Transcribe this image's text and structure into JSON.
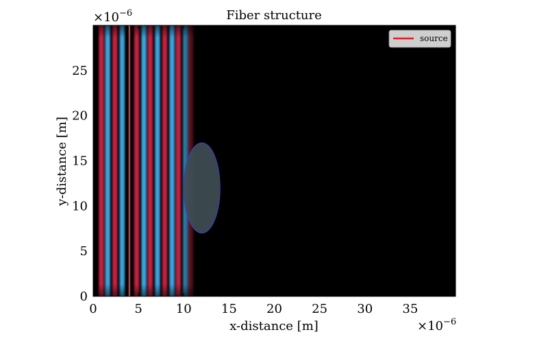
{
  "chart_data": {
    "type": "heatmap",
    "title": "Fiber structure",
    "xlabel": "x-distance [m]",
    "ylabel": "y-distance [m]",
    "x_scale_label": "×10",
    "x_scale_exp": "−6",
    "y_scale_label": "×10",
    "y_scale_exp": "−6",
    "xlim": [
      0,
      40
    ],
    "ylim": [
      0,
      30
    ],
    "xticks": [
      0,
      5,
      10,
      15,
      20,
      25,
      30,
      35
    ],
    "yticks": [
      0,
      5,
      10,
      15,
      20,
      25
    ],
    "background_color": "#000000",
    "wave_field": {
      "x_start": 0.7,
      "x_end": 10.8,
      "stripes": [
        {
          "x": 0.9,
          "color": "#c2213f"
        },
        {
          "x": 1.6,
          "color": "#3aa3dc"
        },
        {
          "x": 2.4,
          "color": "#c2213f"
        },
        {
          "x": 3.2,
          "color": "#3aa3dc"
        },
        {
          "x": 4.8,
          "color": "#c2213f"
        },
        {
          "x": 5.6,
          "color": "#3aa3dc"
        },
        {
          "x": 6.3,
          "color": "#c2213f"
        },
        {
          "x": 7.1,
          "color": "#3aa3dc"
        },
        {
          "x": 7.9,
          "color": "#c2213f"
        },
        {
          "x": 8.7,
          "color": "#3aa3dc"
        },
        {
          "x": 9.4,
          "color": "#c2213f"
        },
        {
          "x": 10.2,
          "color": "#3aa3dc"
        },
        {
          "x": 10.8,
          "color": "#c2213f"
        }
      ],
      "stripe_width": 0.55
    },
    "fiber": {
      "center_x": 12.0,
      "center_y": 12.0,
      "radius_x": 2.0,
      "radius_y": 5.0,
      "fill": "#3f4e55",
      "edge": "#3b3fb5"
    },
    "source_line": {
      "x": 4.0,
      "y_range": [
        0,
        30
      ],
      "color": "#e34a5c"
    },
    "legend": {
      "placement": "top-right",
      "entries": [
        {
          "label": "source",
          "color": "#e41a1c"
        }
      ]
    }
  }
}
